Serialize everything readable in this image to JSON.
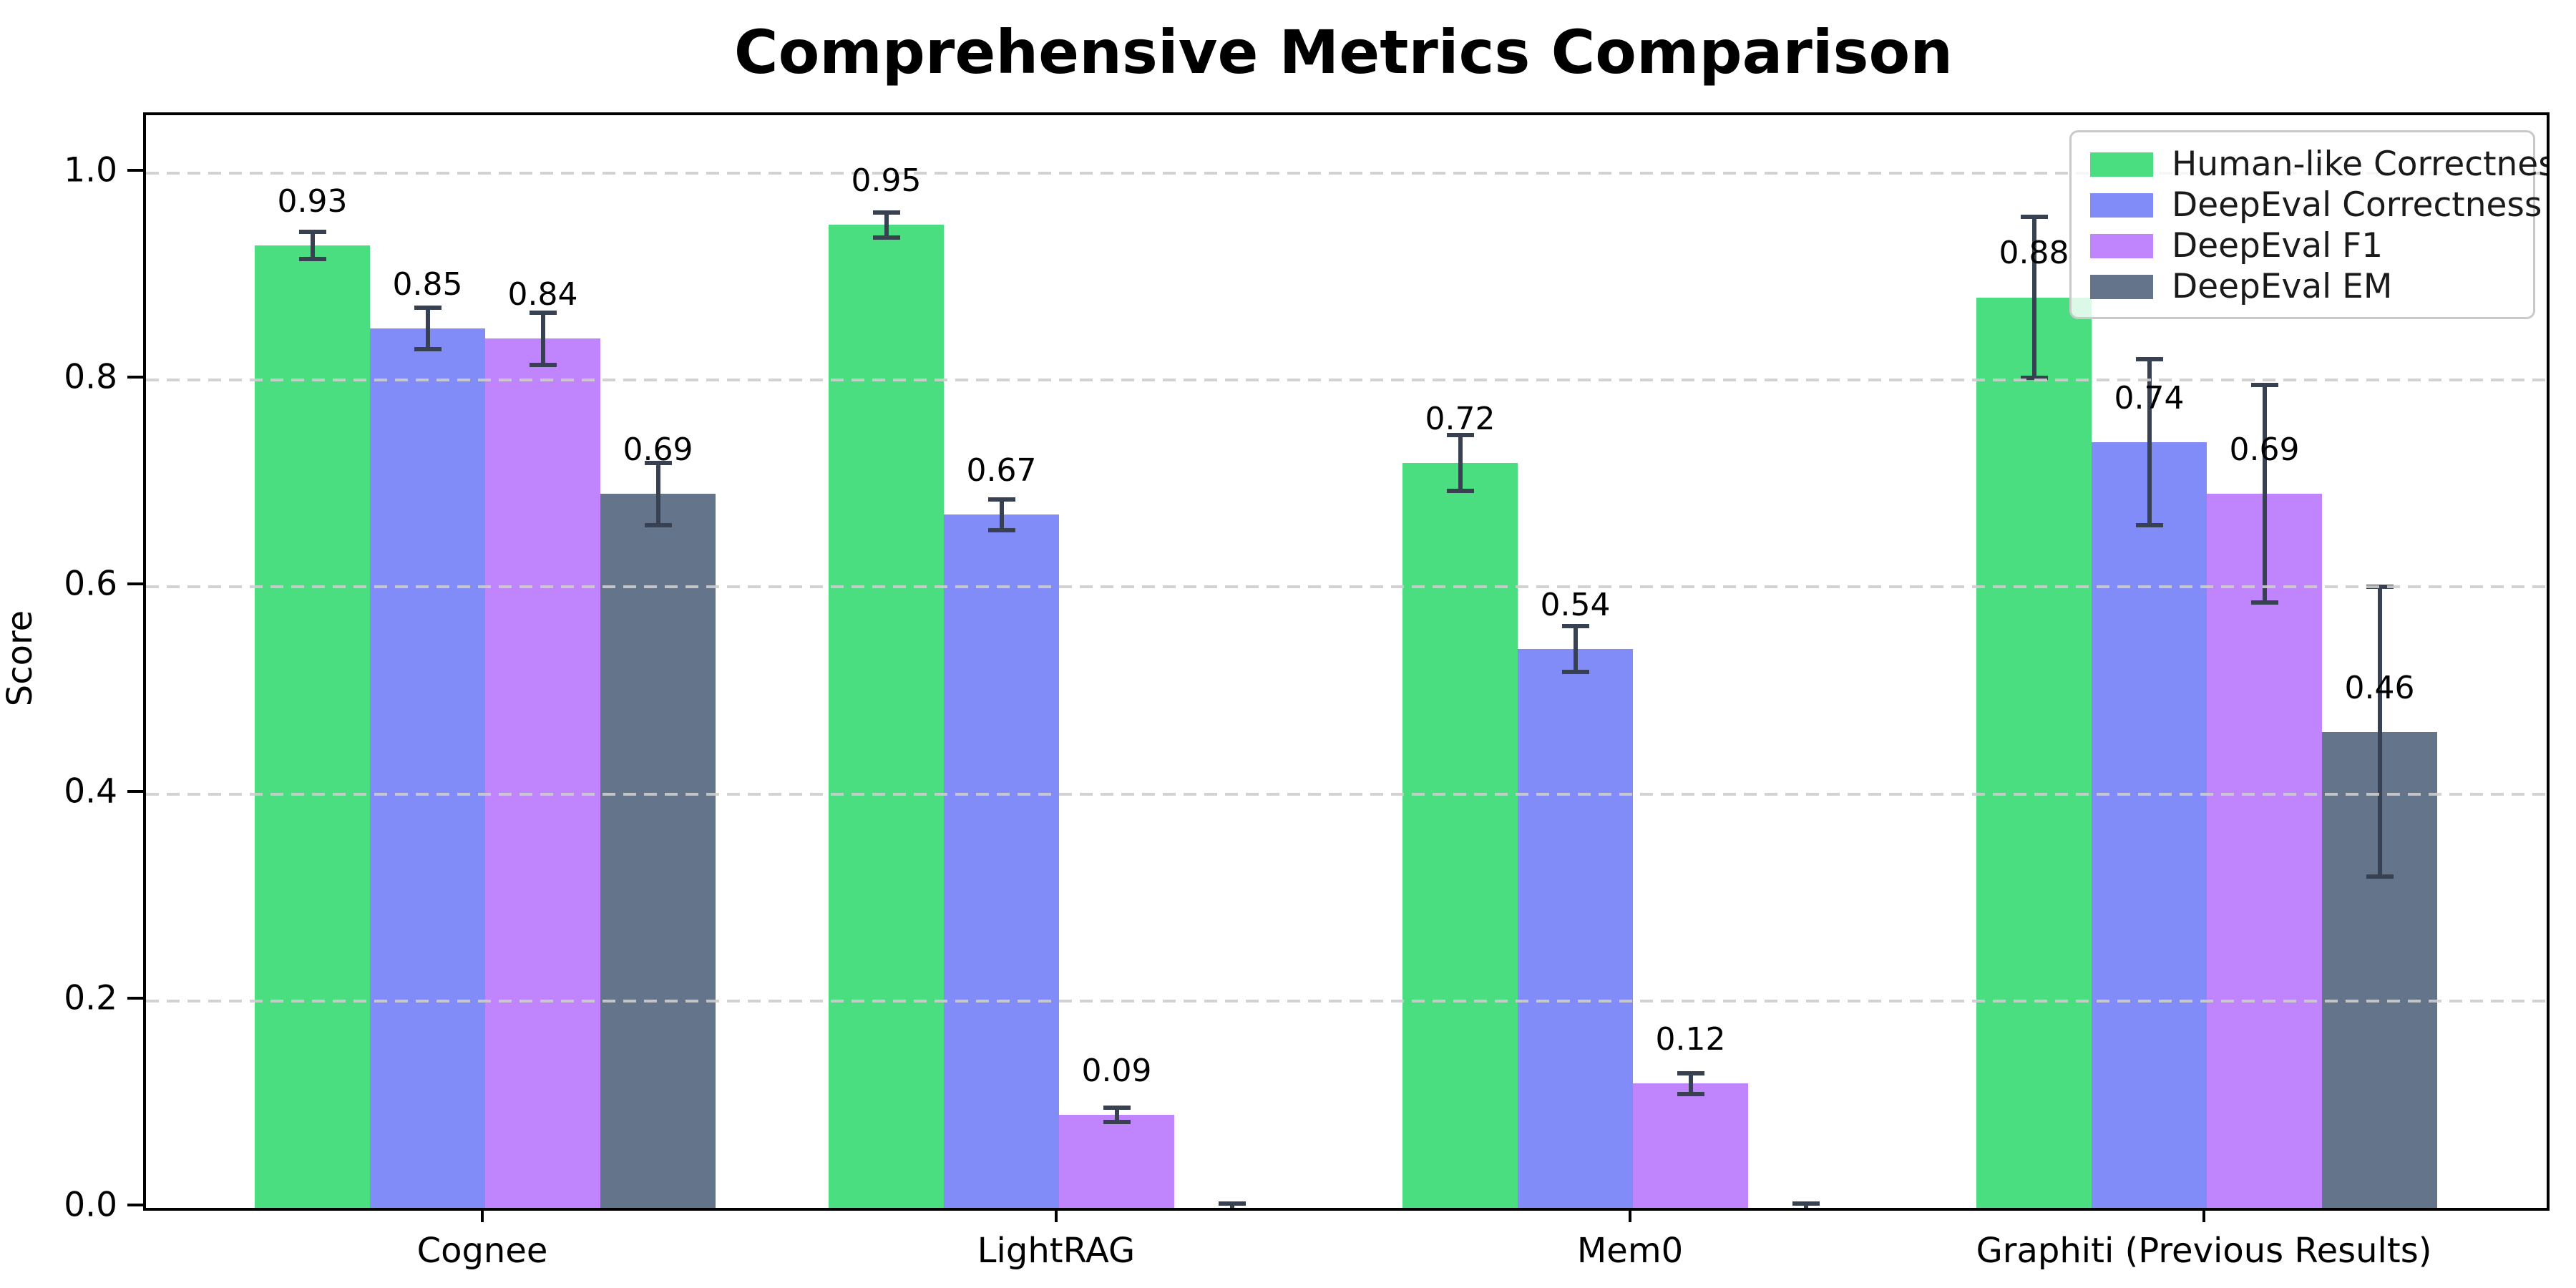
{
  "title": "Comprehensive Metrics Comparison",
  "chart_data": {
    "type": "bar",
    "title": "Comprehensive Metrics Comparison",
    "xlabel": "",
    "ylabel": "Score",
    "categories": [
      "Cognee",
      "LightRAG",
      "Mem0",
      "Graphiti (Previous Results)"
    ],
    "series": [
      {
        "name": "Human-like Correctness",
        "color": "#4ade80",
        "values": [
          0.93,
          0.95,
          0.72,
          0.88
        ],
        "errors": [
          0.013,
          0.012,
          0.027,
          0.078
        ],
        "labels": [
          "0.93",
          "0.95",
          "0.72",
          "0.88"
        ]
      },
      {
        "name": "DeepEval Correctness",
        "color": "#818cf8",
        "values": [
          0.85,
          0.67,
          0.54,
          0.74
        ],
        "errors": [
          0.02,
          0.015,
          0.022,
          0.08
        ],
        "labels": [
          "0.85",
          "0.67",
          "0.54",
          "0.74"
        ]
      },
      {
        "name": "DeepEval F1",
        "color": "#c084fc",
        "values": [
          0.84,
          0.09,
          0.12,
          0.69
        ],
        "errors": [
          0.025,
          0.007,
          0.01,
          0.105
        ],
        "labels": [
          "0.84",
          "0.09",
          "0.12",
          "0.69"
        ]
      },
      {
        "name": "DeepEval EM",
        "color": "#64748b",
        "values": [
          0.69,
          0.0,
          0.0,
          0.46
        ],
        "errors": [
          0.03,
          0.004,
          0.004,
          0.14
        ],
        "labels": [
          "0.69",
          null,
          null,
          "0.46"
        ]
      }
    ],
    "yticks": [
      "0.0",
      "0.2",
      "0.4",
      "0.6",
      "0.8",
      "1.0"
    ],
    "ytick_values": [
      0.0,
      0.2,
      0.4,
      0.6,
      0.8,
      1.0
    ],
    "ylim": [
      0,
      1.056
    ],
    "grid": "horizontal-dashed",
    "legend_position": "upper-right",
    "error_bar_color": "#374151",
    "axis_color": "#000000",
    "background_color": "#ffffff"
  }
}
